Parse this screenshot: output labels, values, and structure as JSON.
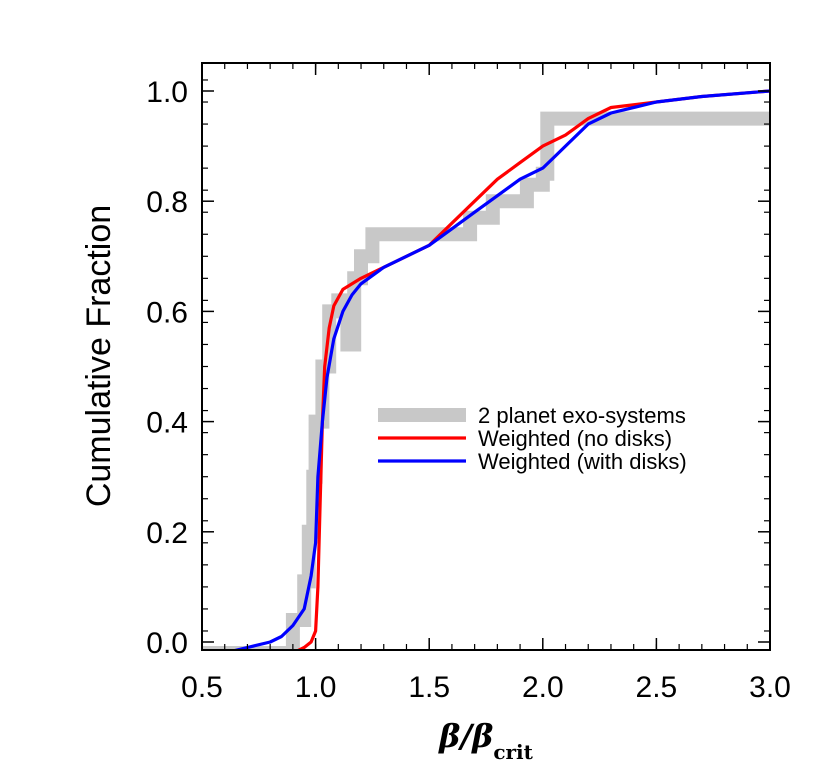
{
  "chart_data": {
    "type": "line",
    "title": "",
    "xlabel": {
      "main": "β/β",
      "sub": "crit"
    },
    "ylabel": "Cumulative Fraction",
    "xlim": [
      0.5,
      3.0
    ],
    "ylim": [
      -0.02,
      1.05
    ],
    "xticks": [
      "0.5",
      "1.0",
      "1.5",
      "2.0",
      "2.5",
      "3.0"
    ],
    "xtick_values": [
      0.5,
      1.0,
      1.5,
      2.0,
      2.5,
      3.0
    ],
    "yticks": [
      "0.0",
      "0.2",
      "0.4",
      "0.6",
      "0.8",
      "1.0"
    ],
    "ytick_values": [
      0.0,
      0.2,
      0.4,
      0.6,
      0.8,
      1.0
    ],
    "grid": false,
    "legend_position": "center-right",
    "series": [
      {
        "name": "2 planet exo-systems",
        "color": "#c8c8c8",
        "style": "step",
        "points": [
          [
            0.5,
            -0.02
          ],
          [
            0.9,
            -0.02
          ],
          [
            0.9,
            0.04
          ],
          [
            0.95,
            0.04
          ],
          [
            0.95,
            0.11
          ],
          [
            0.97,
            0.11
          ],
          [
            0.97,
            0.2
          ],
          [
            0.99,
            0.2
          ],
          [
            0.99,
            0.3
          ],
          [
            1.0,
            0.3
          ],
          [
            1.0,
            0.4
          ],
          [
            1.03,
            0.4
          ],
          [
            1.03,
            0.5
          ],
          [
            1.06,
            0.5
          ],
          [
            1.06,
            0.6
          ],
          [
            1.1,
            0.6
          ],
          [
            1.1,
            0.62
          ],
          [
            1.14,
            0.62
          ],
          [
            1.14,
            0.54
          ],
          [
            1.17,
            0.54
          ],
          [
            1.17,
            0.66
          ],
          [
            1.2,
            0.66
          ],
          [
            1.2,
            0.7
          ],
          [
            1.25,
            0.7
          ],
          [
            1.25,
            0.74
          ],
          [
            1.68,
            0.74
          ],
          [
            1.68,
            0.77
          ],
          [
            1.78,
            0.77
          ],
          [
            1.78,
            0.8
          ],
          [
            1.93,
            0.8
          ],
          [
            1.93,
            0.83
          ],
          [
            2.0,
            0.83
          ],
          [
            2.0,
            0.85
          ],
          [
            2.02,
            0.85
          ],
          [
            2.02,
            0.95
          ],
          [
            3.0,
            0.95
          ]
        ]
      },
      {
        "name": "Weighted (no disks)",
        "color": "#ff0000",
        "style": "line",
        "points": [
          [
            0.5,
            -0.02
          ],
          [
            0.8,
            -0.02
          ],
          [
            0.9,
            -0.02
          ],
          [
            0.95,
            -0.01
          ],
          [
            0.98,
            0.0
          ],
          [
            1.0,
            0.02
          ],
          [
            1.01,
            0.1
          ],
          [
            1.02,
            0.25
          ],
          [
            1.03,
            0.4
          ],
          [
            1.04,
            0.5
          ],
          [
            1.06,
            0.57
          ],
          [
            1.08,
            0.61
          ],
          [
            1.12,
            0.64
          ],
          [
            1.2,
            0.66
          ],
          [
            1.3,
            0.68
          ],
          [
            1.4,
            0.7
          ],
          [
            1.5,
            0.72
          ],
          [
            1.6,
            0.76
          ],
          [
            1.7,
            0.8
          ],
          [
            1.8,
            0.84
          ],
          [
            1.9,
            0.87
          ],
          [
            2.0,
            0.9
          ],
          [
            2.1,
            0.92
          ],
          [
            2.2,
            0.95
          ],
          [
            2.3,
            0.97
          ],
          [
            2.5,
            0.98
          ],
          [
            2.7,
            0.99
          ],
          [
            3.0,
            1.0
          ]
        ]
      },
      {
        "name": "Weighted (with disks)",
        "color": "#0000ff",
        "style": "line",
        "points": [
          [
            0.5,
            -0.02
          ],
          [
            0.6,
            -0.02
          ],
          [
            0.7,
            -0.01
          ],
          [
            0.8,
            0.0
          ],
          [
            0.85,
            0.01
          ],
          [
            0.9,
            0.03
          ],
          [
            0.95,
            0.06
          ],
          [
            0.98,
            0.12
          ],
          [
            1.0,
            0.18
          ],
          [
            1.01,
            0.3
          ],
          [
            1.03,
            0.4
          ],
          [
            1.05,
            0.48
          ],
          [
            1.08,
            0.55
          ],
          [
            1.12,
            0.6
          ],
          [
            1.16,
            0.63
          ],
          [
            1.2,
            0.65
          ],
          [
            1.3,
            0.68
          ],
          [
            1.4,
            0.7
          ],
          [
            1.5,
            0.72
          ],
          [
            1.6,
            0.75
          ],
          [
            1.7,
            0.78
          ],
          [
            1.8,
            0.81
          ],
          [
            1.9,
            0.84
          ],
          [
            2.0,
            0.86
          ],
          [
            2.05,
            0.88
          ],
          [
            2.1,
            0.9
          ],
          [
            2.2,
            0.94
          ],
          [
            2.3,
            0.96
          ],
          [
            2.5,
            0.98
          ],
          [
            2.7,
            0.99
          ],
          [
            3.0,
            1.0
          ]
        ]
      }
    ]
  }
}
